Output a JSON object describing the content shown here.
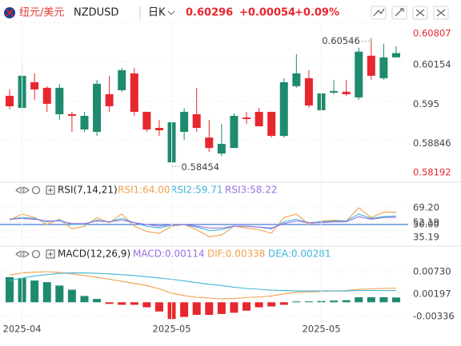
{
  "header": {
    "name": "纽元/美元",
    "symbol": "NZDUSD",
    "period": "日K",
    "price": "0.60296",
    "change": "+0.00054",
    "change_pct": "+0.09%"
  },
  "chart_data": [
    {
      "type": "candlestick",
      "open": [
        0.59587,
        0.59387,
        0.59813,
        0.5972,
        0.59281,
        0.59281,
        0.59028,
        0.58988,
        0.59614,
        0.5968,
        0.5996,
        0.59321,
        0.59054,
        0.58481,
        0.58988,
        0.59281,
        0.58894,
        0.58628,
        0.58721,
        0.59227,
        0.59321,
        0.59321,
        0.58921,
        0.59747,
        0.5988,
        0.59347,
        0.5964,
        0.59654,
        0.5956,
        0.60253,
        0.5988,
        0.60226
      ],
      "high": [
        0.59693,
        0.6012,
        0.5996,
        0.59747,
        0.59787,
        0.59321,
        0.59321,
        0.59853,
        0.5992,
        0.60053,
        0.60053,
        0.59321,
        0.59187,
        0.59187,
        0.59387,
        0.5972,
        0.59187,
        0.59121,
        0.59294,
        0.59321,
        0.59387,
        0.59321,
        0.5988,
        0.6028,
        0.60013,
        0.59853,
        0.59853,
        0.59853,
        0.60386,
        0.60546,
        0.60453,
        0.60413
      ],
      "low": [
        0.59361,
        0.59321,
        0.5952,
        0.59321,
        0.59187,
        0.58988,
        0.58988,
        0.58921,
        0.59321,
        0.59654,
        0.59254,
        0.58988,
        0.58921,
        0.58454,
        0.58854,
        0.58988,
        0.58655,
        0.58588,
        0.58721,
        0.59121,
        0.59081,
        0.58894,
        0.58894,
        0.5972,
        0.59387,
        0.59214,
        0.59614,
        0.59587,
        0.5952,
        0.59853,
        0.59853,
        0.60226
      ],
      "close": [
        0.59414,
        0.5992,
        0.59693,
        0.59454,
        0.5972,
        0.59254,
        0.59254,
        0.59787,
        0.59414,
        0.60013,
        0.59321,
        0.59028,
        0.59014,
        0.59147,
        0.59321,
        0.59054,
        0.58721,
        0.58788,
        0.59254,
        0.59201,
        0.59081,
        0.58921,
        0.59813,
        0.5996,
        0.59427,
        0.59627,
        0.59667,
        0.59614,
        0.6032,
        0.5992,
        0.60226,
        0.60296
      ],
      "up_color": "#1e8a6e",
      "down_color": "#e8262d",
      "extreme_tick_color": "#e8262d",
      "ylim": [
        0.58192,
        0.60807
      ],
      "yticks": [
        0.58192,
        0.58846,
        0.595,
        0.60154,
        0.60807
      ],
      "grid": true
    },
    {
      "type": "line",
      "title": "RSI(7,14,21)",
      "series": [
        {
          "name": "RSI1:64.00",
          "color": "#f0a04b",
          "values": [
            55,
            62,
            58,
            50,
            56,
            45,
            48,
            58,
            52,
            62,
            48,
            42,
            40,
            48,
            50,
            44,
            36,
            38,
            48,
            46,
            44,
            40,
            58,
            62,
            50,
            54,
            55,
            54,
            69,
            58,
            64,
            64
          ]
        },
        {
          "name": "RSI2:59.71",
          "color": "#3fb6d8",
          "values": [
            56,
            58,
            57,
            53,
            55,
            50,
            50,
            55,
            53,
            57,
            52,
            48,
            46,
            49,
            50,
            47,
            43,
            44,
            48,
            48,
            47,
            45,
            53,
            56,
            52,
            53,
            54,
            54,
            62,
            57,
            59,
            59.71
          ]
        },
        {
          "name": "RSI3:58.22",
          "color": "#9b6fe0",
          "values": [
            56,
            57,
            56,
            54,
            54,
            51,
            51,
            54,
            53,
            55,
            52,
            50,
            48,
            50,
            50,
            48,
            46,
            46,
            48,
            48,
            47,
            46,
            51,
            54,
            52,
            52,
            53,
            53,
            59,
            56,
            58,
            58.22
          ]
        }
      ],
      "hline": {
        "value": 50,
        "color": "#2f6fd6"
      },
      "ylim": [
        28,
        81
      ],
      "yticks": [
        {
          "value": 35.19,
          "label": "35.19"
        },
        {
          "value": 50,
          "label": "50.00"
        },
        {
          "value": 52.19,
          "label": "52.19"
        },
        {
          "value": 69.2,
          "label": "69.20"
        }
      ],
      "grid": true
    },
    {
      "type": "macd",
      "title": "MACD(12,26,9)",
      "categories": [
        null,
        "2025-04",
        null,
        null,
        null,
        null,
        null,
        null,
        null,
        null,
        null,
        null,
        null,
        "2025-05",
        null,
        null,
        null,
        null,
        null,
        null,
        null,
        null,
        null,
        null,
        null,
        "2025-05",
        null,
        null,
        null,
        null,
        null,
        null
      ],
      "series": [
        {
          "name": "MACD:0.00114",
          "color": "#9b6fe0",
          "up_color": "#1e8a6e",
          "down_color": "#e8262d",
          "values": [
            0.006,
            0.0058,
            0.0052,
            0.0048,
            0.004,
            0.003,
            0.0015,
            0.0008,
            -0.0004,
            -0.0006,
            -0.0006,
            -0.0012,
            -0.0022,
            -0.004,
            -0.0035,
            -0.003,
            -0.003,
            -0.0028,
            -0.0025,
            -0.002,
            -0.0012,
            -0.001,
            -0.0006,
            0.0002,
            0.0002,
            0.0003,
            0.0004,
            0.0005,
            0.0012,
            0.0012,
            0.0012,
            0.00114
          ]
        },
        {
          "name": "DIF:0.00338",
          "color": "#f0a04b",
          "values": [
            0.0065,
            0.007,
            0.0072,
            0.0073,
            0.0071,
            0.0068,
            0.0064,
            0.006,
            0.0055,
            0.005,
            0.0045,
            0.004,
            0.0032,
            0.0022,
            0.0016,
            0.0012,
            0.001,
            0.0008,
            0.0009,
            0.0011,
            0.0013,
            0.0015,
            0.002,
            0.0024,
            0.0025,
            0.0026,
            0.0027,
            0.0028,
            0.0031,
            0.0032,
            0.0033,
            0.00338
          ]
        },
        {
          "name": "DEA:0.00281",
          "color": "#3fb6d8",
          "values": [
            0.0052,
            0.0058,
            0.0063,
            0.0066,
            0.0069,
            0.007,
            0.007,
            0.0069,
            0.0068,
            0.0066,
            0.0064,
            0.0061,
            0.0058,
            0.0055,
            0.0051,
            0.0047,
            0.0043,
            0.004,
            0.0036,
            0.0033,
            0.0031,
            0.0029,
            0.0028,
            0.0027,
            0.0027,
            0.0027,
            0.0027,
            0.0027,
            0.0028,
            0.0028,
            0.0028,
            0.00281
          ]
        }
      ],
      "ylim": [
        -0.0051,
        0.0096
      ],
      "yticks": [
        {
          "value": -0.00336,
          "label": "-0.00336"
        },
        {
          "value": 0.00197,
          "label": "0.00197"
        },
        {
          "value": 0.0073,
          "label": "0.00730"
        }
      ],
      "grid": true
    }
  ]
}
